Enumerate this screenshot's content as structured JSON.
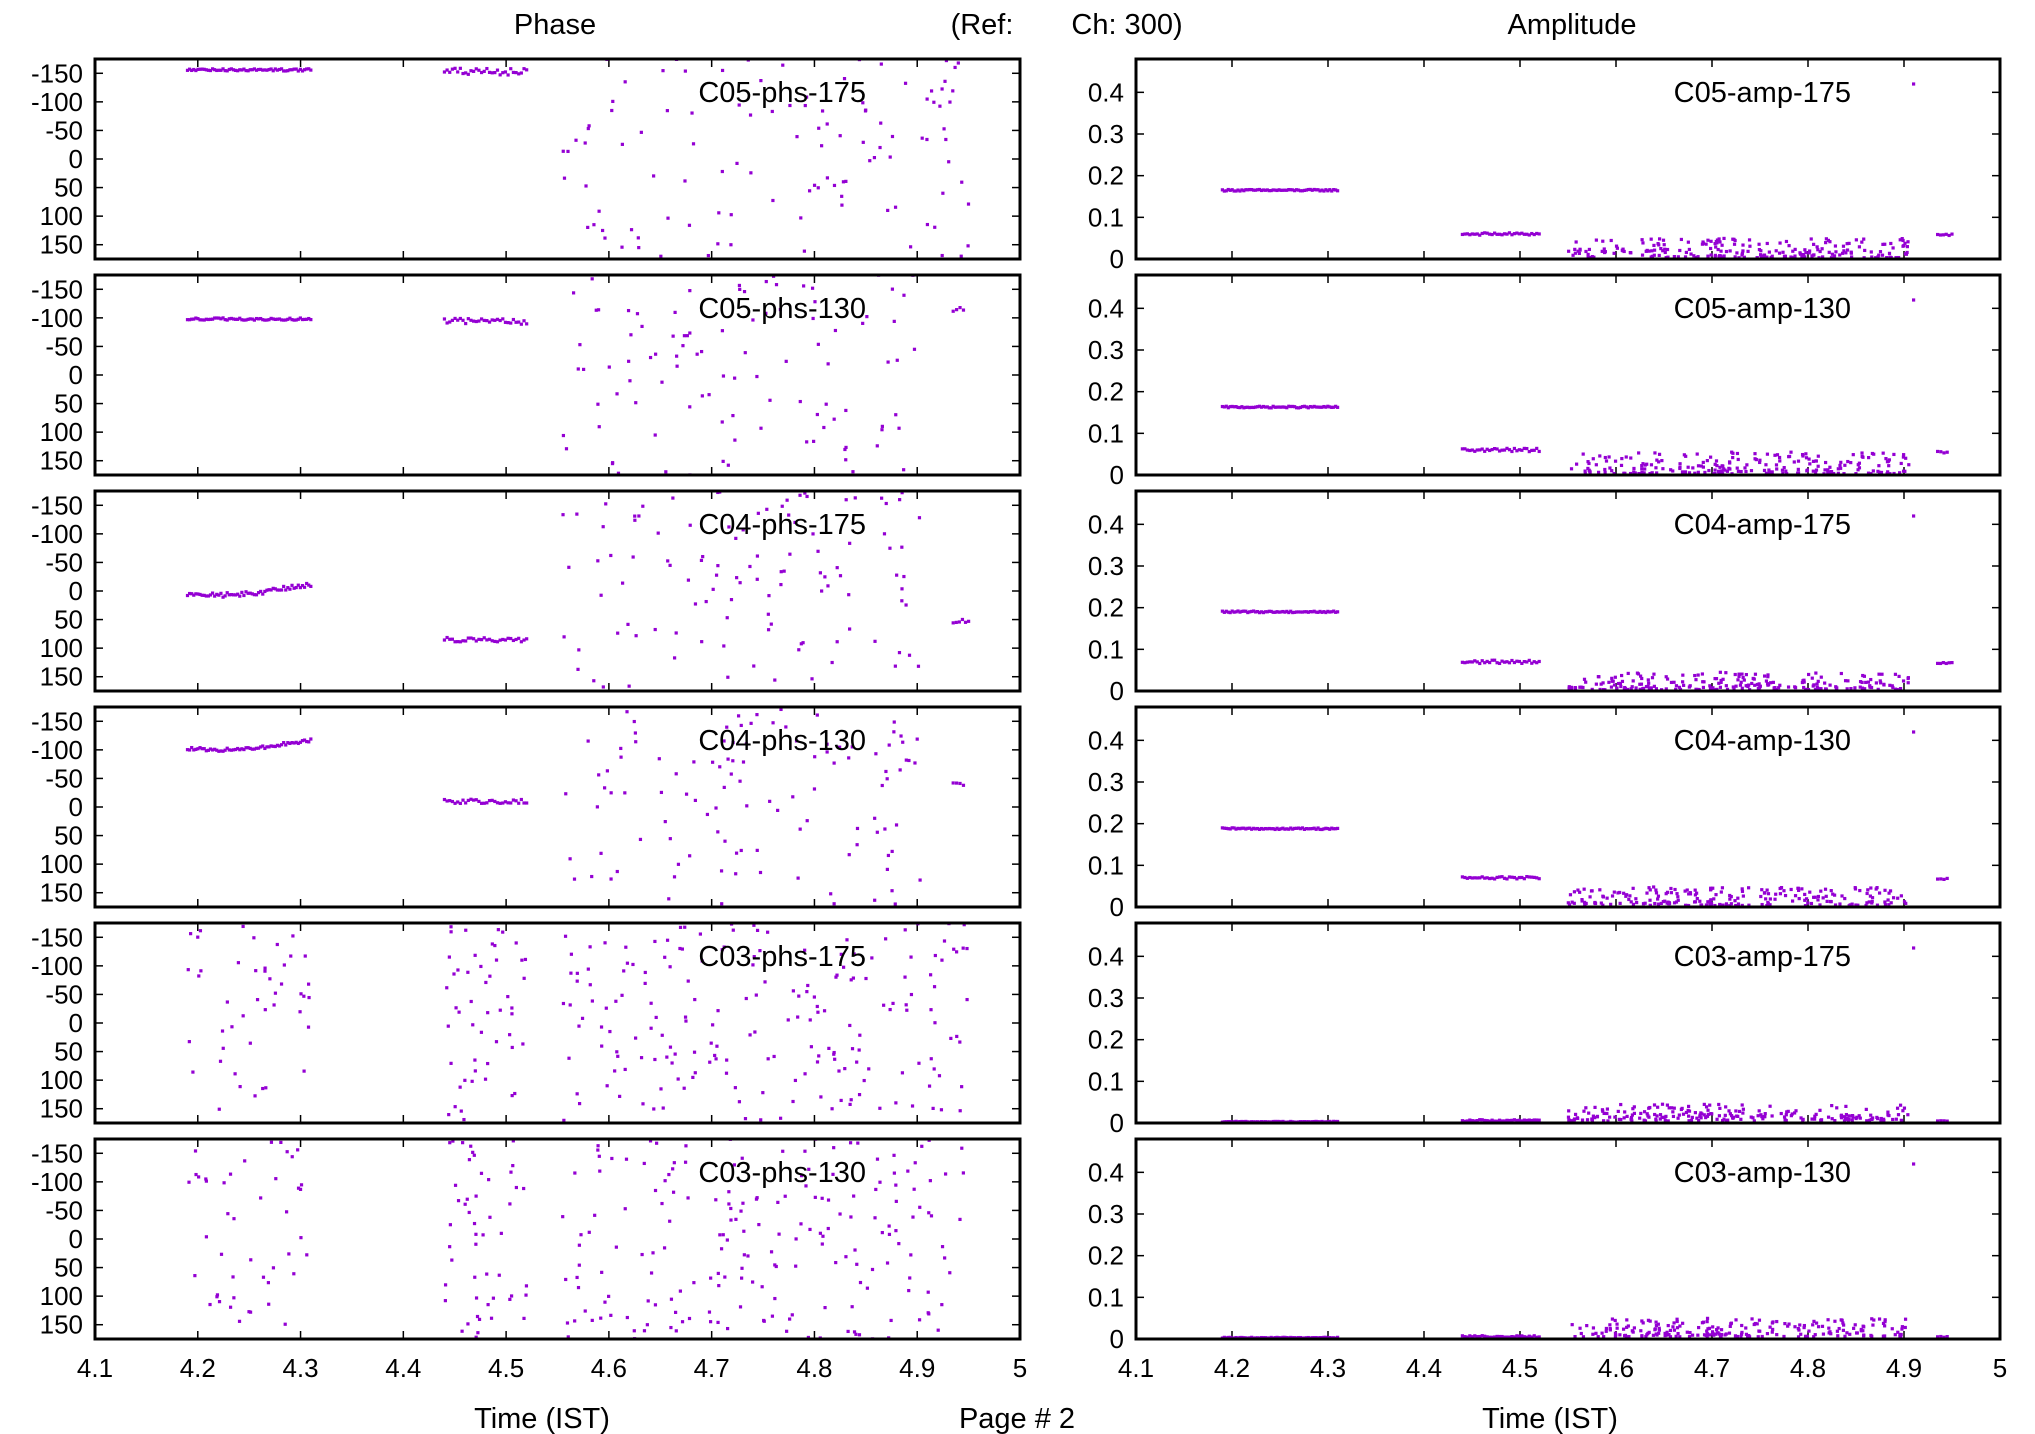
{
  "header": {
    "phase_title": "Phase",
    "ref_label": "(Ref:",
    "channel_label": "Ch: 300)",
    "amplitude_title": "Amplitude"
  },
  "footer": {
    "page_label": "Page # 2",
    "left_xlabel": "Time (IST)",
    "right_xlabel": "Time (IST)"
  },
  "colors": {
    "points": "#9400d3",
    "frame": "#000000"
  },
  "chart_data": [
    {
      "type": "scatter",
      "group": "phase",
      "series_label": "C05-phs-175",
      "xlim": [
        4.1,
        5.0
      ],
      "ylim": [
        -175,
        175
      ],
      "y_reversed": true,
      "yticks": [
        -150,
        -100,
        -50,
        0,
        50,
        100,
        150
      ],
      "x_ticklabels_shown": false,
      "steady": [
        {
          "x": [
            4.19,
            4.31
          ],
          "y": -156,
          "n": 60,
          "jitter": 2
        },
        {
          "x": [
            4.44,
            4.52
          ],
          "y": -153,
          "n": 32,
          "jitter": 6
        }
      ],
      "isolated": [
        {
          "x": 4.94,
          "y": -168
        }
      ],
      "noise": {
        "x": [
          4.555,
          4.95
        ],
        "n": 110,
        "y": [
          -175,
          175
        ]
      }
    },
    {
      "type": "scatter",
      "group": "amplitude",
      "series_label": "C05-amp-175",
      "xlim": [
        4.1,
        5.0
      ],
      "ylim": [
        0,
        0.48
      ],
      "y_reversed": false,
      "yticks": [
        0,
        0.1,
        0.2,
        0.3,
        0.4
      ],
      "x_ticklabels_shown": false,
      "steady": [
        {
          "x": [
            4.19,
            4.31
          ],
          "y": 0.165,
          "n": 60,
          "jitter": 0.002
        },
        {
          "x": [
            4.44,
            4.52
          ],
          "y": 0.06,
          "n": 32,
          "jitter": 0.003
        },
        {
          "x": [
            4.935,
            4.95
          ],
          "y": 0.058,
          "n": 6,
          "jitter": 0.002
        }
      ],
      "isolated": [
        {
          "x": 4.91,
          "y": 0.42
        }
      ],
      "noise": {
        "x": [
          4.55,
          4.905
        ],
        "n": 220,
        "y": [
          0.003,
          0.05
        ]
      }
    },
    {
      "type": "scatter",
      "group": "phase",
      "series_label": "C05-phs-130",
      "xlim": [
        4.1,
        5.0
      ],
      "ylim": [
        -175,
        175
      ],
      "y_reversed": true,
      "yticks": [
        -150,
        -100,
        -50,
        0,
        50,
        100,
        150
      ],
      "x_ticklabels_shown": false,
      "steady": [
        {
          "x": [
            4.19,
            4.31
          ],
          "y": -98,
          "n": 60,
          "jitter": 2
        },
        {
          "x": [
            4.44,
            4.52
          ],
          "y": -93,
          "n": 32,
          "jitter": 6
        },
        {
          "x": [
            4.935,
            4.945
          ],
          "y": -115,
          "n": 4,
          "jitter": 6
        }
      ],
      "isolated": [],
      "noise": {
        "x": [
          4.555,
          4.905
        ],
        "n": 100,
        "y": [
          -175,
          175
        ]
      }
    },
    {
      "type": "scatter",
      "group": "amplitude",
      "series_label": "C05-amp-130",
      "xlim": [
        4.1,
        5.0
      ],
      "ylim": [
        0,
        0.48
      ],
      "y_reversed": false,
      "yticks": [
        0,
        0.1,
        0.2,
        0.3,
        0.4
      ],
      "x_ticklabels_shown": false,
      "steady": [
        {
          "x": [
            4.19,
            4.31
          ],
          "y": 0.163,
          "n": 60,
          "jitter": 0.002
        },
        {
          "x": [
            4.44,
            4.52
          ],
          "y": 0.06,
          "n": 32,
          "jitter": 0.004
        },
        {
          "x": [
            4.935,
            4.945
          ],
          "y": 0.055,
          "n": 4,
          "jitter": 0.002
        }
      ],
      "isolated": [
        {
          "x": 4.91,
          "y": 0.42
        }
      ],
      "noise": {
        "x": [
          4.55,
          4.905
        ],
        "n": 220,
        "y": [
          0.003,
          0.055
        ]
      }
    },
    {
      "type": "scatter",
      "group": "phase",
      "series_label": "C04-phs-175",
      "xlim": [
        4.1,
        5.0
      ],
      "ylim": [
        -175,
        175
      ],
      "y_reversed": true,
      "yticks": [
        -150,
        -100,
        -50,
        0,
        50,
        100,
        150
      ],
      "x_ticklabels_shown": false,
      "steady": [
        {
          "x": [
            4.19,
            4.31
          ],
          "y": 5,
          "n": 60,
          "jitter": 4,
          "slope": 20
        },
        {
          "x": [
            4.44,
            4.52
          ],
          "y": 85,
          "n": 32,
          "jitter": 4
        },
        {
          "x": [
            4.935,
            4.95
          ],
          "y": 52,
          "n": 6,
          "jitter": 4
        }
      ],
      "isolated": [],
      "noise": {
        "x": [
          4.555,
          4.905
        ],
        "n": 110,
        "y": [
          -175,
          175
        ]
      }
    },
    {
      "type": "scatter",
      "group": "amplitude",
      "series_label": "C04-amp-175",
      "xlim": [
        4.1,
        5.0
      ],
      "ylim": [
        0,
        0.48
      ],
      "y_reversed": false,
      "yticks": [
        0,
        0.1,
        0.2,
        0.3,
        0.4
      ],
      "x_ticklabels_shown": false,
      "steady": [
        {
          "x": [
            4.19,
            4.31
          ],
          "y": 0.19,
          "n": 60,
          "jitter": 0.002
        },
        {
          "x": [
            4.44,
            4.52
          ],
          "y": 0.07,
          "n": 32,
          "jitter": 0.004
        },
        {
          "x": [
            4.935,
            4.95
          ],
          "y": 0.068,
          "n": 6,
          "jitter": 0.002
        }
      ],
      "isolated": [
        {
          "x": 4.91,
          "y": 0.42
        }
      ],
      "noise": {
        "x": [
          4.55,
          4.905
        ],
        "n": 220,
        "y": [
          0.003,
          0.045
        ]
      }
    },
    {
      "type": "scatter",
      "group": "phase",
      "series_label": "C04-phs-130",
      "xlim": [
        4.1,
        5.0
      ],
      "ylim": [
        -175,
        175
      ],
      "y_reversed": true,
      "yticks": [
        -150,
        -100,
        -50,
        0,
        50,
        100,
        150
      ],
      "x_ticklabels_shown": false,
      "steady": [
        {
          "x": [
            4.19,
            4.31
          ],
          "y": -103,
          "n": 60,
          "jitter": 3,
          "slope": 15
        },
        {
          "x": [
            4.44,
            4.52
          ],
          "y": -10,
          "n": 32,
          "jitter": 4
        },
        {
          "x": [
            4.935,
            4.945
          ],
          "y": -40,
          "n": 4,
          "jitter": 3
        }
      ],
      "isolated": [],
      "noise": {
        "x": [
          4.555,
          4.905
        ],
        "n": 110,
        "y": [
          -175,
          175
        ]
      }
    },
    {
      "type": "scatter",
      "group": "amplitude",
      "series_label": "C04-amp-130",
      "xlim": [
        4.1,
        5.0
      ],
      "ylim": [
        0,
        0.48
      ],
      "y_reversed": false,
      "yticks": [
        0,
        0.1,
        0.2,
        0.3,
        0.4
      ],
      "x_ticklabels_shown": false,
      "steady": [
        {
          "x": [
            4.19,
            4.31
          ],
          "y": 0.188,
          "n": 60,
          "jitter": 0.002
        },
        {
          "x": [
            4.44,
            4.52
          ],
          "y": 0.07,
          "n": 32,
          "jitter": 0.003
        },
        {
          "x": [
            4.935,
            4.945
          ],
          "y": 0.068,
          "n": 4,
          "jitter": 0.002
        }
      ],
      "isolated": [
        {
          "x": 4.91,
          "y": 0.42
        }
      ],
      "noise": {
        "x": [
          4.55,
          4.905
        ],
        "n": 220,
        "y": [
          0.003,
          0.048
        ]
      }
    },
    {
      "type": "scatter",
      "group": "phase",
      "series_label": "C03-phs-175",
      "xlim": [
        4.1,
        5.0
      ],
      "ylim": [
        -175,
        175
      ],
      "y_reversed": true,
      "yticks": [
        -150,
        -100,
        -50,
        0,
        50,
        100,
        150
      ],
      "x_ticklabels_shown": false,
      "steady": [],
      "isolated": [],
      "noise_blocks": [
        {
          "x": [
            4.19,
            4.31
          ],
          "n": 45,
          "y": [
            -175,
            175
          ]
        },
        {
          "x": [
            4.44,
            4.52
          ],
          "n": 50,
          "y": [
            -175,
            175
          ]
        },
        {
          "x": [
            4.555,
            4.95
          ],
          "n": 190,
          "y": [
            -175,
            175
          ]
        }
      ]
    },
    {
      "type": "scatter",
      "group": "amplitude",
      "series_label": "C03-amp-175",
      "xlim": [
        4.1,
        5.0
      ],
      "ylim": [
        0,
        0.48
      ],
      "y_reversed": false,
      "yticks": [
        0,
        0.1,
        0.2,
        0.3,
        0.4
      ],
      "x_ticklabels_shown": false,
      "steady": [
        {
          "x": [
            4.19,
            4.31
          ],
          "y": 0.003,
          "n": 60,
          "jitter": 0.001
        },
        {
          "x": [
            4.44,
            4.52
          ],
          "y": 0.006,
          "n": 32,
          "jitter": 0.002
        },
        {
          "x": [
            4.935,
            4.945
          ],
          "y": 0.005,
          "n": 4,
          "jitter": 0.001
        }
      ],
      "isolated": [
        {
          "x": 4.91,
          "y": 0.42
        }
      ],
      "noise": {
        "x": [
          4.55,
          4.905
        ],
        "n": 220,
        "y": [
          0.005,
          0.045
        ]
      }
    },
    {
      "type": "scatter",
      "group": "phase",
      "series_label": "C03-phs-130",
      "xlim": [
        4.1,
        5.0
      ],
      "ylim": [
        -175,
        175
      ],
      "y_reversed": true,
      "yticks": [
        -150,
        -100,
        -50,
        0,
        50,
        100,
        150
      ],
      "x_ticklabels_shown": true,
      "xticks": [
        4.1,
        4.2,
        4.3,
        4.4,
        4.5,
        4.6,
        4.7,
        4.8,
        4.9,
        5.0
      ],
      "steady": [],
      "isolated": [],
      "noise_blocks": [
        {
          "x": [
            4.19,
            4.31
          ],
          "n": 45,
          "y": [
            -175,
            175
          ]
        },
        {
          "x": [
            4.44,
            4.52
          ],
          "n": 50,
          "y": [
            -175,
            175
          ]
        },
        {
          "x": [
            4.555,
            4.95
          ],
          "n": 190,
          "y": [
            -175,
            175
          ]
        }
      ]
    },
    {
      "type": "scatter",
      "group": "amplitude",
      "series_label": "C03-amp-130",
      "xlim": [
        4.1,
        5.0
      ],
      "ylim": [
        0,
        0.48
      ],
      "y_reversed": false,
      "yticks": [
        0,
        0.1,
        0.2,
        0.3,
        0.4
      ],
      "x_ticklabels_shown": true,
      "xticks": [
        4.1,
        4.2,
        4.3,
        4.4,
        4.5,
        4.6,
        4.7,
        4.8,
        4.9,
        5.0
      ],
      "steady": [
        {
          "x": [
            4.19,
            4.31
          ],
          "y": 0.003,
          "n": 60,
          "jitter": 0.001
        },
        {
          "x": [
            4.44,
            4.52
          ],
          "y": 0.006,
          "n": 32,
          "jitter": 0.002
        },
        {
          "x": [
            4.935,
            4.945
          ],
          "y": 0.005,
          "n": 4,
          "jitter": 0.001
        }
      ],
      "isolated": [
        {
          "x": 4.91,
          "y": 0.42
        }
      ],
      "noise": {
        "x": [
          4.55,
          4.905
        ],
        "n": 220,
        "y": [
          0.005,
          0.05
        ]
      }
    }
  ]
}
